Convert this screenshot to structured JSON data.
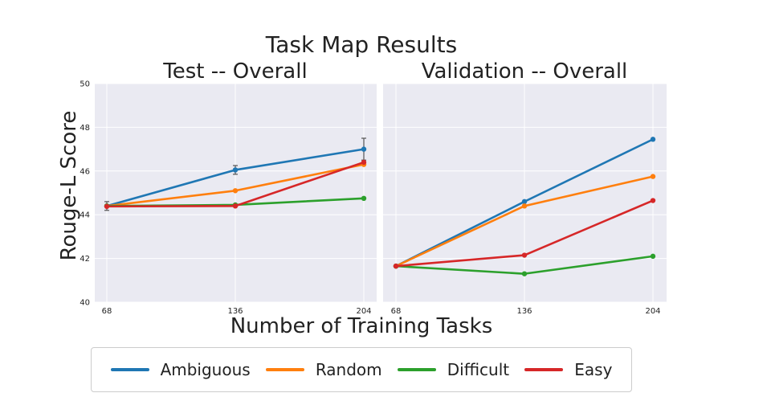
{
  "chart_data": {
    "type": "line",
    "title": "Task Map Results",
    "xlabel": "Number of Training Tasks",
    "ylabel": "Rouge-L Score",
    "ylim": [
      40,
      50
    ],
    "yticks": [
      "40",
      "42",
      "44",
      "46",
      "48",
      "50"
    ],
    "x": [
      68,
      136,
      204
    ],
    "xticks": [
      "68",
      "136",
      "204"
    ],
    "colors": {
      "Ambiguous": "#1f77b4",
      "Random": "#ff7f0e",
      "Difficult": "#2ca02c",
      "Easy": "#d62728"
    },
    "legend": [
      "Ambiguous",
      "Random",
      "Difficult",
      "Easy"
    ],
    "panels": [
      {
        "title": "Test -- Overall",
        "series": [
          {
            "name": "Ambiguous",
            "values": [
              44.4,
              46.05,
              47.0
            ],
            "errors": [
              0.2,
              0.2,
              0.5
            ]
          },
          {
            "name": "Random",
            "values": [
              44.4,
              45.1,
              46.3
            ]
          },
          {
            "name": "Difficult",
            "values": [
              44.4,
              44.45,
              44.75
            ]
          },
          {
            "name": "Easy",
            "values": [
              44.38,
              44.4,
              46.4
            ]
          }
        ]
      },
      {
        "title": "Validation -- Overall",
        "series": [
          {
            "name": "Ambiguous",
            "values": [
              41.65,
              44.6,
              47.45
            ]
          },
          {
            "name": "Random",
            "values": [
              41.65,
              44.4,
              45.75
            ]
          },
          {
            "name": "Difficult",
            "values": [
              41.65,
              41.3,
              42.1
            ]
          },
          {
            "name": "Easy",
            "values": [
              41.65,
              42.15,
              44.65
            ]
          }
        ]
      }
    ]
  }
}
